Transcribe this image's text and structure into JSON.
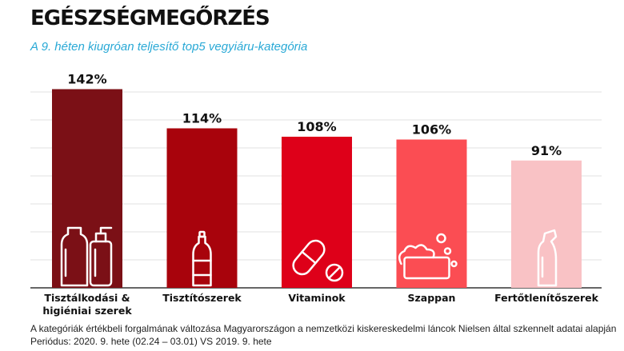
{
  "header": {
    "title": "EGÉSZSÉGMEGŐRZÉS",
    "subtitle": "A 9. héten kiugróan teljesítő top5 vegyiáru-kategória"
  },
  "footnote": {
    "line1": "A kategóriák értékbeli forgalmának változása Magyarországon a nemzetközi kiskereskedelmi láncok Nielsen által szkennelt adatai alapján",
    "line2": "Periódus: 2020. 9. hete (02.24 – 03.01) VS 2019. 9. hete"
  },
  "chart_data": {
    "type": "bar",
    "categories": [
      [
        "Tisztálkodási &",
        "higiéniai szerek"
      ],
      [
        "Tisztítószerek"
      ],
      [
        "Vitaminok"
      ],
      [
        "Szappan"
      ],
      [
        "Fertőtlenítőszerek"
      ]
    ],
    "values": [
      142,
      114,
      108,
      106,
      91
    ],
    "data_labels": [
      "142%",
      "114%",
      "108%",
      "106%",
      "91%"
    ],
    "colors": [
      "#7b1016",
      "#a8030c",
      "#de0019",
      "#fb4d53",
      "#f9c2c5"
    ],
    "icons": [
      "bottles-icon",
      "spray-bottle-icon",
      "pills-icon",
      "soap-icon",
      "cleaner-bottle-icon"
    ],
    "ylim": [
      0,
      150
    ],
    "grid": true,
    "legend": "none"
  }
}
